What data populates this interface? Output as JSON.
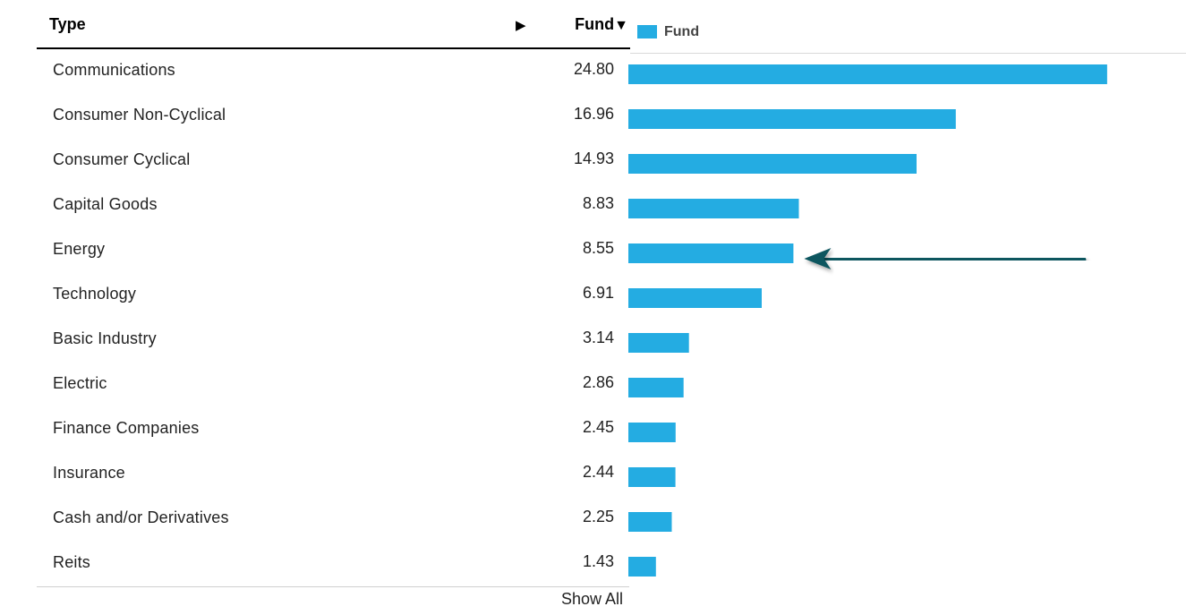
{
  "table": {
    "header": {
      "type_label": "Type",
      "expand_glyph": "▶",
      "fund_label": "Fund",
      "sort_glyph": "▼"
    },
    "show_all_label": "Show All"
  },
  "legend": {
    "label": "Fund",
    "color": "#24ace2"
  },
  "annotation": {
    "type": "arrow",
    "points_to": "Energy",
    "color": "#11575f"
  },
  "chart_data": {
    "type": "bar",
    "orientation": "horizontal",
    "categories": [
      "Communications",
      "Consumer Non-Cyclical",
      "Consumer Cyclical",
      "Capital Goods",
      "Energy",
      "Technology",
      "Basic Industry",
      "Electric",
      "Finance Companies",
      "Insurance",
      "Cash and/or Derivatives",
      "Reits"
    ],
    "value_labels": [
      "24.80",
      "16.96",
      "14.93",
      "8.83",
      "8.55",
      "6.91",
      "3.14",
      "2.86",
      "2.45",
      "2.44",
      "2.25",
      "1.43"
    ],
    "series": [
      {
        "name": "Fund",
        "values": [
          24.8,
          16.96,
          14.93,
          8.83,
          8.55,
          6.91,
          3.14,
          2.86,
          2.45,
          2.44,
          2.25,
          1.43
        ],
        "color": "#24ace2"
      }
    ],
    "xlim": [
      0,
      30.5
    ],
    "legend_position": "top-left",
    "grid": false
  }
}
